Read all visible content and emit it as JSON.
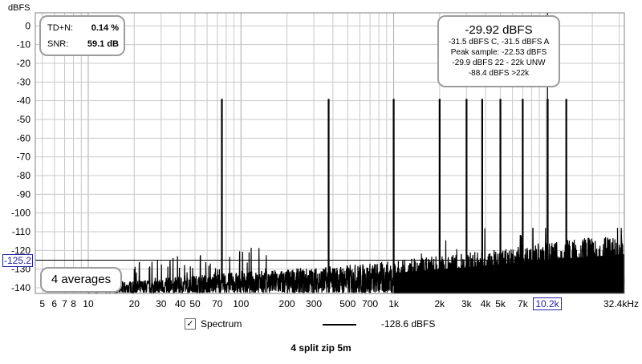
{
  "chart_data": {
    "type": "line",
    "ylabel": "dBFS",
    "xunit": "kHz",
    "xscale": "log",
    "xlim": [
      4.5,
      32400
    ],
    "ylim": [
      -143,
      7
    ],
    "grid": true,
    "yticks": [
      0,
      -10,
      -20,
      -30,
      -40,
      -50,
      -60,
      -70,
      -80,
      -90,
      -100,
      -110,
      -120,
      -130,
      -140
    ],
    "xticks": [
      {
        "v": 5,
        "label": "5"
      },
      {
        "v": 6,
        "label": "6"
      },
      {
        "v": 7,
        "label": "7"
      },
      {
        "v": 8,
        "label": "8"
      },
      {
        "v": 10,
        "label": "10"
      },
      {
        "v": 20,
        "label": "20"
      },
      {
        "v": 30,
        "label": "30"
      },
      {
        "v": 40,
        "label": "40"
      },
      {
        "v": 50,
        "label": "50"
      },
      {
        "v": 70,
        "label": "70"
      },
      {
        "v": 100,
        "label": "100"
      },
      {
        "v": 200,
        "label": "200"
      },
      {
        "v": 300,
        "label": "300"
      },
      {
        "v": 500,
        "label": "500"
      },
      {
        "v": 700,
        "label": "700"
      },
      {
        "v": 1000,
        "label": "1k"
      },
      {
        "v": 2000,
        "label": "2k"
      },
      {
        "v": 3000,
        "label": "3k"
      },
      {
        "v": 4000,
        "label": "4k"
      },
      {
        "v": 5000,
        "label": "5k"
      },
      {
        "v": 7000,
        "label": "7k"
      },
      {
        "v": 32400,
        "label": "32.4kHz"
      }
    ],
    "peaks": [
      {
        "x": 75,
        "y": -39
      },
      {
        "x": 375,
        "y": -39
      },
      {
        "x": 1000,
        "y": -39
      },
      {
        "x": 2000,
        "y": -39
      },
      {
        "x": 3000,
        "y": -39
      },
      {
        "x": 3800,
        "y": -39
      },
      {
        "x": 5000,
        "y": -39
      },
      {
        "x": 7000,
        "y": -39
      },
      {
        "x": 10200,
        "y": -39
      },
      {
        "x": 13500,
        "y": -39
      }
    ],
    "noise_floor": [
      {
        "x": 10,
        "y": -141
      },
      {
        "x": 50,
        "y": -138
      },
      {
        "x": 100,
        "y": -137
      },
      {
        "x": 300,
        "y": -136
      },
      {
        "x": 1000,
        "y": -134
      },
      {
        "x": 3000,
        "y": -131
      },
      {
        "x": 10000,
        "y": -127
      },
      {
        "x": 32400,
        "y": -124
      }
    ],
    "level_cursor": -125.2,
    "freq_cursor": 10200,
    "series": [
      {
        "name": "Spectrum",
        "value_label": "-128.6 dBFS"
      }
    ],
    "title": "4 split zip 5m",
    "colors": {
      "trace": "#000000",
      "grid": "#c8c8c8",
      "cursor": "#2222aa"
    }
  },
  "stats": {
    "tdn_label": "TD+N:",
    "tdn_value": "0.14 %",
    "snr_label": "SNR:",
    "snr_value": "59.1 dB"
  },
  "level": {
    "main": "-29.92 dBFS",
    "lines": [
      "-31.5 dBFS C, -31.5 dBFS A",
      "Peak sample: -22.53 dBFS",
      "-29.9 dBFS 22 - 22k UNW",
      "-88.4 dBFS >22k"
    ]
  },
  "averages": "4 averages",
  "cursor_label": "-125.2",
  "freq_cursor_label": "10.2k",
  "legend": {
    "checked": true,
    "check_glyph": "✓"
  }
}
